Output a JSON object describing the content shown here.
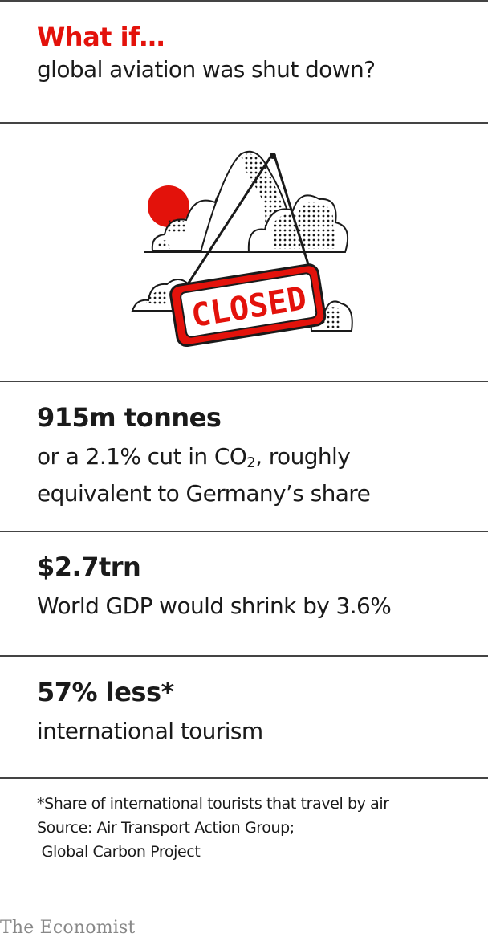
{
  "header": {
    "title": "What if…",
    "subtitle": "global aviation was shut down?"
  },
  "illustration": {
    "sign_text": "CLOSED",
    "colors": {
      "accent": "#e3120b",
      "ink": "#1a1a1a"
    }
  },
  "stats": [
    {
      "headline": "915m tonnes",
      "text_before": "or a 2.1% cut in CO",
      "subscript": "2",
      "text_after": ", roughly",
      "text_line2": "equivalent to Germany’s share"
    },
    {
      "headline": "$2.7trn",
      "text": "World GDP would shrink by 3.6%"
    },
    {
      "headline": "57% less*",
      "text": "international tourism"
    }
  ],
  "footnotes": {
    "note": "*Share of international tourists that travel by air",
    "source_line1": "Source: Air Transport Action Group;",
    "source_line2": " Global Carbon Project"
  },
  "brand": {
    "logo_text": "The Economist"
  }
}
